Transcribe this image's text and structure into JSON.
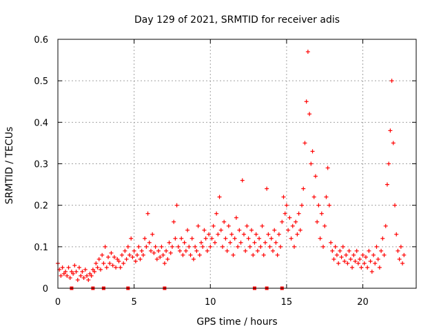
{
  "chart_data": {
    "type": "scatter",
    "title": "Day 129 of 2021, SRMTID for receiver adis",
    "xlabel": "GPS time / hours",
    "ylabel": "SRMTID / TECUs",
    "xlim": [
      0,
      23.5
    ],
    "ylim": [
      0,
      0.6
    ],
    "xticks": [
      0,
      5,
      10,
      15,
      20
    ],
    "yticks": [
      0,
      0.1,
      0.2,
      0.3,
      0.4,
      0.5,
      0.6
    ],
    "grid": true,
    "marker": "+",
    "color": "#ff0000",
    "zero_markers_x": [
      0.9,
      2.3,
      3.0,
      4.6,
      7.0,
      12.9,
      13.7,
      14.7
    ],
    "series": [
      {
        "name": "SRMTID",
        "points": [
          [
            0.0,
            0.06
          ],
          [
            0.1,
            0.045
          ],
          [
            0.2,
            0.03
          ],
          [
            0.3,
            0.05
          ],
          [
            0.4,
            0.035
          ],
          [
            0.5,
            0.04
          ],
          [
            0.6,
            0.03
          ],
          [
            0.7,
            0.05
          ],
          [
            0.8,
            0.025
          ],
          [
            0.9,
            0.04
          ],
          [
            1.0,
            0.035
          ],
          [
            1.1,
            0.055
          ],
          [
            1.2,
            0.04
          ],
          [
            1.3,
            0.02
          ],
          [
            1.4,
            0.05
          ],
          [
            1.5,
            0.03
          ],
          [
            1.6,
            0.04
          ],
          [
            1.7,
            0.025
          ],
          [
            1.8,
            0.045
          ],
          [
            1.9,
            0.03
          ],
          [
            2.0,
            0.02
          ],
          [
            2.1,
            0.035
          ],
          [
            2.2,
            0.03
          ],
          [
            2.3,
            0.045
          ],
          [
            2.4,
            0.04
          ],
          [
            2.5,
            0.06
          ],
          [
            2.6,
            0.05
          ],
          [
            2.7,
            0.07
          ],
          [
            2.8,
            0.045
          ],
          [
            2.9,
            0.08
          ],
          [
            3.0,
            0.06
          ],
          [
            3.1,
            0.1
          ],
          [
            3.2,
            0.05
          ],
          [
            3.3,
            0.075
          ],
          [
            3.4,
            0.06
          ],
          [
            3.5,
            0.085
          ],
          [
            3.6,
            0.055
          ],
          [
            3.7,
            0.075
          ],
          [
            3.8,
            0.05
          ],
          [
            3.9,
            0.07
          ],
          [
            4.0,
            0.065
          ],
          [
            4.1,
            0.05
          ],
          [
            4.2,
            0.08
          ],
          [
            4.3,
            0.06
          ],
          [
            4.4,
            0.09
          ],
          [
            4.5,
            0.07
          ],
          [
            4.6,
            0.1
          ],
          [
            4.7,
            0.08
          ],
          [
            4.8,
            0.12
          ],
          [
            4.9,
            0.075
          ],
          [
            5.0,
            0.09
          ],
          [
            5.1,
            0.065
          ],
          [
            5.2,
            0.08
          ],
          [
            5.3,
            0.1
          ],
          [
            5.4,
            0.07
          ],
          [
            5.5,
            0.09
          ],
          [
            5.6,
            0.08
          ],
          [
            5.7,
            0.12
          ],
          [
            5.8,
            0.1
          ],
          [
            5.9,
            0.18
          ],
          [
            6.0,
            0.11
          ],
          [
            6.1,
            0.09
          ],
          [
            6.2,
            0.13
          ],
          [
            6.3,
            0.085
          ],
          [
            6.4,
            0.1
          ],
          [
            6.5,
            0.07
          ],
          [
            6.6,
            0.09
          ],
          [
            6.7,
            0.075
          ],
          [
            6.8,
            0.1
          ],
          [
            6.9,
            0.08
          ],
          [
            7.0,
            0.06
          ],
          [
            7.1,
            0.09
          ],
          [
            7.2,
            0.07
          ],
          [
            7.3,
            0.11
          ],
          [
            7.4,
            0.085
          ],
          [
            7.5,
            0.1
          ],
          [
            7.6,
            0.16
          ],
          [
            7.7,
            0.12
          ],
          [
            7.8,
            0.2
          ],
          [
            7.9,
            0.1
          ],
          [
            8.0,
            0.09
          ],
          [
            8.1,
            0.12
          ],
          [
            8.2,
            0.08
          ],
          [
            8.3,
            0.11
          ],
          [
            8.4,
            0.09
          ],
          [
            8.5,
            0.14
          ],
          [
            8.6,
            0.1
          ],
          [
            8.7,
            0.08
          ],
          [
            8.8,
            0.12
          ],
          [
            8.9,
            0.07
          ],
          [
            9.0,
            0.1
          ],
          [
            9.1,
            0.09
          ],
          [
            9.2,
            0.15
          ],
          [
            9.3,
            0.08
          ],
          [
            9.4,
            0.11
          ],
          [
            9.5,
            0.1
          ],
          [
            9.6,
            0.14
          ],
          [
            9.7,
            0.12
          ],
          [
            9.8,
            0.09
          ],
          [
            9.9,
            0.13
          ],
          [
            10.0,
            0.1
          ],
          [
            10.1,
            0.12
          ],
          [
            10.2,
            0.15
          ],
          [
            10.3,
            0.11
          ],
          [
            10.4,
            0.18
          ],
          [
            10.5,
            0.13
          ],
          [
            10.6,
            0.22
          ],
          [
            10.7,
            0.14
          ],
          [
            10.8,
            0.1
          ],
          [
            10.9,
            0.16
          ],
          [
            11.0,
            0.12
          ],
          [
            11.1,
            0.09
          ],
          [
            11.2,
            0.15
          ],
          [
            11.3,
            0.11
          ],
          [
            11.4,
            0.13
          ],
          [
            11.5,
            0.08
          ],
          [
            11.6,
            0.12
          ],
          [
            11.7,
            0.17
          ],
          [
            11.8,
            0.1
          ],
          [
            11.9,
            0.14
          ],
          [
            12.0,
            0.11
          ],
          [
            12.1,
            0.26
          ],
          [
            12.2,
            0.13
          ],
          [
            12.3,
            0.09
          ],
          [
            12.4,
            0.15
          ],
          [
            12.5,
            0.12
          ],
          [
            12.6,
            0.1
          ],
          [
            12.7,
            0.14
          ],
          [
            12.8,
            0.08
          ],
          [
            12.9,
            0.11
          ],
          [
            13.0,
            0.13
          ],
          [
            13.1,
            0.09
          ],
          [
            13.2,
            0.12
          ],
          [
            13.3,
            0.1
          ],
          [
            13.4,
            0.15
          ],
          [
            13.5,
            0.08
          ],
          [
            13.6,
            0.11
          ],
          [
            13.7,
            0.24
          ],
          [
            13.8,
            0.13
          ],
          [
            13.9,
            0.1
          ],
          [
            14.0,
            0.12
          ],
          [
            14.1,
            0.09
          ],
          [
            14.2,
            0.14
          ],
          [
            14.3,
            0.11
          ],
          [
            14.4,
            0.08
          ],
          [
            14.5,
            0.13
          ],
          [
            14.6,
            0.1
          ],
          [
            14.7,
            0.16
          ],
          [
            14.8,
            0.22
          ],
          [
            14.9,
            0.18
          ],
          [
            15.0,
            0.2
          ],
          [
            15.1,
            0.14
          ],
          [
            15.2,
            0.17
          ],
          [
            15.3,
            0.12
          ],
          [
            15.4,
            0.15
          ],
          [
            15.5,
            0.1
          ],
          [
            15.6,
            0.16
          ],
          [
            15.7,
            0.13
          ],
          [
            15.8,
            0.18
          ],
          [
            15.9,
            0.14
          ],
          [
            16.0,
            0.2
          ],
          [
            16.1,
            0.24
          ],
          [
            16.2,
            0.35
          ],
          [
            16.3,
            0.45
          ],
          [
            16.4,
            0.57
          ],
          [
            16.5,
            0.42
          ],
          [
            16.6,
            0.3
          ],
          [
            16.7,
            0.33
          ],
          [
            16.8,
            0.22
          ],
          [
            16.9,
            0.27
          ],
          [
            17.0,
            0.16
          ],
          [
            17.1,
            0.2
          ],
          [
            17.2,
            0.12
          ],
          [
            17.3,
            0.18
          ],
          [
            17.4,
            0.1
          ],
          [
            17.5,
            0.15
          ],
          [
            17.6,
            0.22
          ],
          [
            17.7,
            0.29
          ],
          [
            17.8,
            0.2
          ],
          [
            17.9,
            0.11
          ],
          [
            18.0,
            0.09
          ],
          [
            18.1,
            0.07
          ],
          [
            18.2,
            0.1
          ],
          [
            18.3,
            0.08
          ],
          [
            18.4,
            0.06
          ],
          [
            18.5,
            0.09
          ],
          [
            18.6,
            0.075
          ],
          [
            18.7,
            0.1
          ],
          [
            18.8,
            0.065
          ],
          [
            18.9,
            0.08
          ],
          [
            19.0,
            0.06
          ],
          [
            19.1,
            0.09
          ],
          [
            19.2,
            0.07
          ],
          [
            19.3,
            0.05
          ],
          [
            19.4,
            0.08
          ],
          [
            19.5,
            0.065
          ],
          [
            19.6,
            0.09
          ],
          [
            19.7,
            0.06
          ],
          [
            19.8,
            0.07
          ],
          [
            19.9,
            0.05
          ],
          [
            20.0,
            0.08
          ],
          [
            20.1,
            0.06
          ],
          [
            20.2,
            0.075
          ],
          [
            20.3,
            0.05
          ],
          [
            20.4,
            0.09
          ],
          [
            20.5,
            0.065
          ],
          [
            20.6,
            0.04
          ],
          [
            20.7,
            0.08
          ],
          [
            20.8,
            0.06
          ],
          [
            20.9,
            0.1
          ],
          [
            21.0,
            0.07
          ],
          [
            21.1,
            0.05
          ],
          [
            21.2,
            0.09
          ],
          [
            21.3,
            0.12
          ],
          [
            21.4,
            0.08
          ],
          [
            21.5,
            0.15
          ],
          [
            21.6,
            0.25
          ],
          [
            21.7,
            0.3
          ],
          [
            21.8,
            0.38
          ],
          [
            21.9,
            0.5
          ],
          [
            22.0,
            0.35
          ],
          [
            22.1,
            0.2
          ],
          [
            22.2,
            0.13
          ],
          [
            22.3,
            0.09
          ],
          [
            22.4,
            0.07
          ],
          [
            22.5,
            0.1
          ],
          [
            22.6,
            0.06
          ],
          [
            22.7,
            0.08
          ]
        ]
      }
    ]
  }
}
